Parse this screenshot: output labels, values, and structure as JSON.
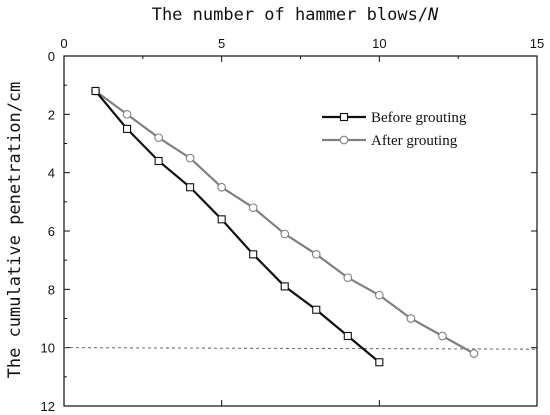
{
  "chart_data": {
    "type": "line",
    "title": "",
    "xlabel": "The number of hammer blows/",
    "xlabel_symbol": "N",
    "ylabel": "The cumulative penetration/cm",
    "x_axis_position": "top",
    "y_inverted": true,
    "xlim": [
      0,
      15
    ],
    "ylim": [
      0,
      12
    ],
    "x_ticks": [
      "0",
      "5",
      "10",
      "15"
    ],
    "y_ticks": [
      "0",
      "2",
      "4",
      "6",
      "8",
      "10",
      "12"
    ],
    "grid": false,
    "legend_position": "top-right",
    "reference_line": {
      "y": 10,
      "style": "dashed"
    },
    "series": [
      {
        "name": "Before grouting",
        "marker": "square",
        "color": "#111111",
        "x": [
          1,
          2,
          3,
          4,
          5,
          6,
          7,
          8,
          9,
          10
        ],
        "y": [
          1.2,
          2.5,
          3.6,
          4.5,
          5.6,
          6.8,
          7.9,
          8.7,
          9.6,
          10.5
        ]
      },
      {
        "name": "After grouting",
        "marker": "circle",
        "color": "#808080",
        "x": [
          1,
          2,
          3,
          4,
          5,
          6,
          7,
          8,
          9,
          10,
          11,
          12,
          13
        ],
        "y": [
          1.2,
          2.0,
          2.8,
          3.5,
          4.5,
          5.2,
          6.1,
          6.8,
          7.6,
          8.2,
          9.0,
          9.6,
          10.2
        ]
      }
    ]
  }
}
